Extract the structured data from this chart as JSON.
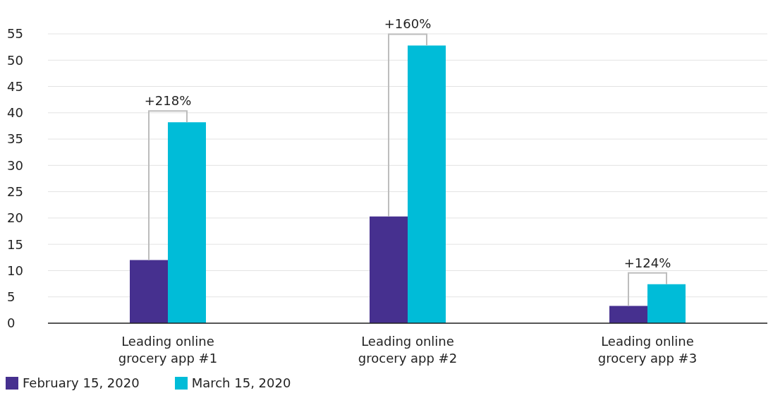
{
  "chart_data": {
    "type": "bar",
    "categories": [
      "Leading online grocery app #1",
      "Leading online grocery app #2",
      "Leading online grocery app #3"
    ],
    "series": [
      {
        "name": "February 15, 2020",
        "color": "#46308f",
        "values": [
          12,
          20.3,
          3.3
        ]
      },
      {
        "name": "March 15, 2020",
        "color": "#00bcd8",
        "values": [
          38.2,
          52.8,
          7.4
        ]
      }
    ],
    "ylim": [
      0,
      55
    ],
    "yticks": [
      0,
      5,
      10,
      15,
      20,
      25,
      30,
      35,
      40,
      45,
      50,
      55
    ],
    "grid": "y",
    "legend": "bottom left",
    "annotations": [
      {
        "text": "+218%",
        "x": "Leading online grocery app #1",
        "y": 38.2
      },
      {
        "text": "+160%",
        "x": "Leading online grocery app #2",
        "y": 52.8
      },
      {
        "text": "+124%",
        "x": "Leading online grocery app #3",
        "y": 7.4
      }
    ]
  }
}
